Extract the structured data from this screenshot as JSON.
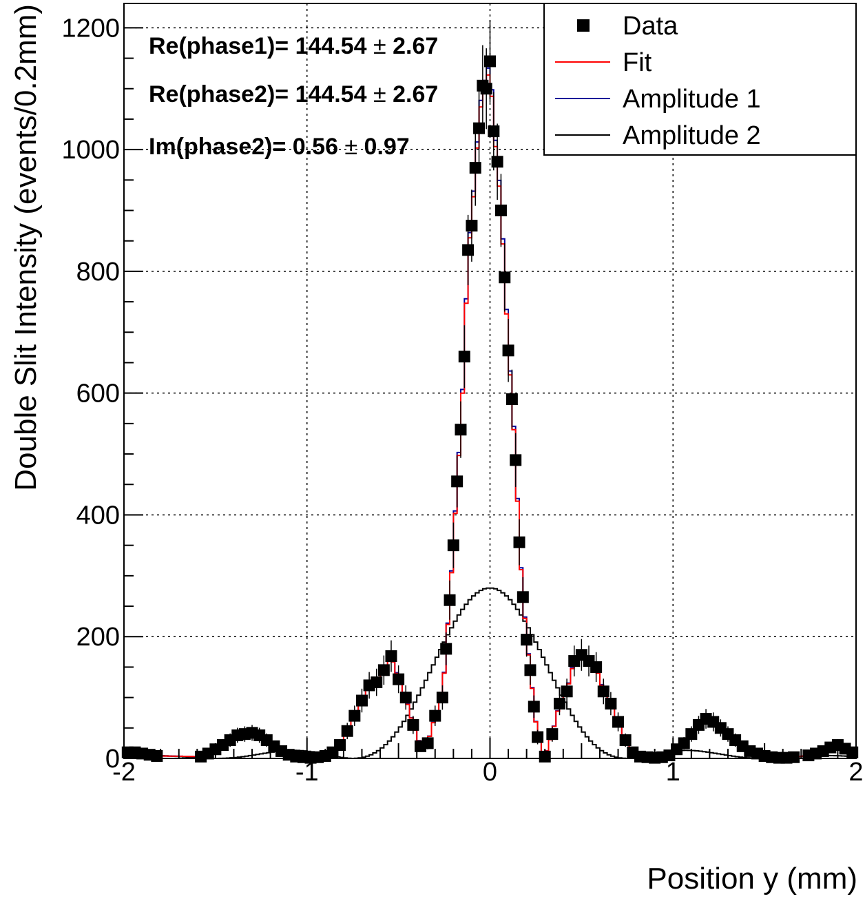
{
  "chart_data": {
    "type": "scatter",
    "xlabel": "Position y (mm)",
    "ylabel": "Double Slit Intensity (events/0.2mm)",
    "xlim": [
      -2,
      2
    ],
    "ylim": [
      0,
      1240
    ],
    "grid": true,
    "x_ticks": [
      -2,
      -1,
      0,
      1,
      2
    ],
    "x_tick_labels": [
      "-2",
      "-1",
      "0",
      "1",
      "2"
    ],
    "y_ticks": [
      0,
      200,
      400,
      600,
      800,
      1000,
      1200
    ],
    "y_tick_labels": [
      "0",
      "200",
      "400",
      "600",
      "800",
      "1000",
      "1200"
    ],
    "legend_position": "top-right",
    "legend": [
      {
        "label": "Data",
        "style": "marker",
        "color": "#000000"
      },
      {
        "label": "Fit",
        "style": "line",
        "color": "#ff0000"
      },
      {
        "label": "Amplitude 1",
        "style": "line",
        "color": "#000099"
      },
      {
        "label": "Amplitude 2",
        "style": "line",
        "color": "#000000"
      }
    ],
    "annotations": [
      {
        "name": "Re(phase1)",
        "text": "Re(phase1)= 144.54",
        "pm": "±",
        "err": "2.67"
      },
      {
        "name": "Re(phase2)",
        "text": "Re(phase2)= 144.54",
        "pm": "±",
        "err": "2.67"
      },
      {
        "name": "Im(phase2)",
        "text": "Im(phase2)= 0.56",
        "pm": "±",
        "err": "0.97"
      }
    ],
    "series": [
      {
        "name": "Data",
        "kind": "points",
        "color": "#000000",
        "x": [
          -1.98,
          -1.94,
          -1.9,
          -1.86,
          -1.82,
          -1.58,
          -1.54,
          -1.5,
          -1.46,
          -1.42,
          -1.38,
          -1.34,
          -1.3,
          -1.26,
          -1.22,
          -1.18,
          -1.14,
          -1.1,
          -1.06,
          -1.02,
          -0.98,
          -0.94,
          -0.9,
          -0.86,
          -0.82,
          -0.78,
          -0.74,
          -0.7,
          -0.66,
          -0.62,
          -0.58,
          -0.54,
          -0.5,
          -0.46,
          -0.42,
          -0.38,
          -0.34,
          -0.3,
          -0.26,
          -0.24,
          -0.22,
          -0.2,
          -0.18,
          -0.16,
          -0.14,
          -0.12,
          -0.1,
          -0.08,
          -0.06,
          -0.04,
          -0.02,
          0.0,
          0.02,
          0.04,
          0.06,
          0.08,
          0.1,
          0.12,
          0.14,
          0.16,
          0.18,
          0.2,
          0.22,
          0.24,
          0.26,
          0.3,
          0.34,
          0.38,
          0.42,
          0.46,
          0.5,
          0.54,
          0.58,
          0.62,
          0.66,
          0.7,
          0.74,
          0.78,
          0.82,
          0.86,
          0.9,
          0.94,
          0.98,
          1.02,
          1.06,
          1.1,
          1.14,
          1.18,
          1.22,
          1.26,
          1.3,
          1.34,
          1.38,
          1.42,
          1.46,
          1.5,
          1.54,
          1.58,
          1.62,
          1.66,
          1.74,
          1.78,
          1.82,
          1.86,
          1.9,
          1.94,
          1.98
        ],
        "y": [
          10,
          10,
          8,
          6,
          4,
          3,
          8,
          15,
          22,
          30,
          38,
          40,
          42,
          38,
          30,
          20,
          12,
          6,
          3,
          2,
          1,
          2,
          4,
          10,
          22,
          45,
          70,
          95,
          120,
          125,
          145,
          168,
          130,
          100,
          55,
          20,
          25,
          70,
          100,
          180,
          260,
          350,
          455,
          540,
          660,
          835,
          875,
          970,
          1035,
          1105,
          1100,
          1145,
          1030,
          980,
          900,
          790,
          670,
          590,
          490,
          355,
          265,
          195,
          145,
          85,
          35,
          3,
          40,
          90,
          110,
          160,
          170,
          160,
          150,
          110,
          90,
          60,
          30,
          10,
          3,
          2,
          1,
          2,
          5,
          15,
          25,
          40,
          55,
          65,
          60,
          50,
          40,
          30,
          20,
          12,
          8,
          4,
          2,
          1,
          1,
          2,
          5,
          8,
          12,
          18,
          22,
          16,
          10
        ]
      }
    ]
  }
}
